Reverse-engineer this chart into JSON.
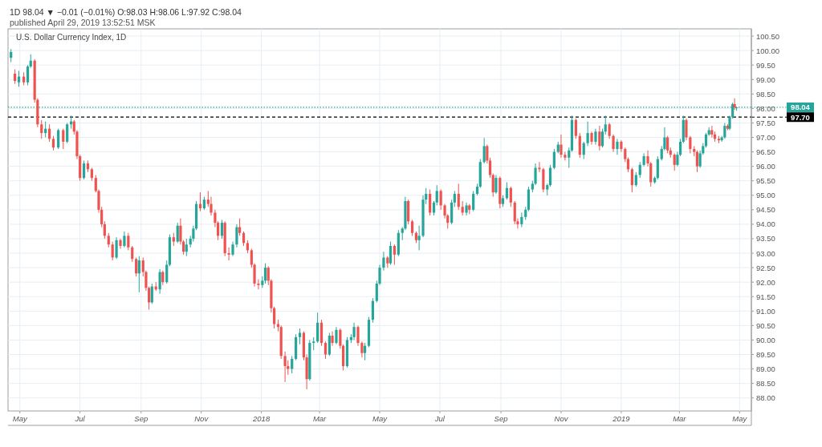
{
  "chart_data": {
    "type": "candlestick",
    "title": "U.S. Dollar Currency Index, 1D",
    "annotations": [
      "1D 98.04 ▼ −0.01 (−0.01%) O:98.03 H:98.06 L:97.92 C:98.04",
      "published April 29, 2019 13:52:51 MSK"
    ],
    "x": [
      "2017-04-22",
      "2017-04-26",
      "2017-04-30",
      "2017-05-05",
      "2017-05-09",
      "2017-05-12",
      "2017-05-16",
      "2017-05-19",
      "2017-05-23",
      "2017-05-27",
      "2017-05-31",
      "2017-06-04",
      "2017-06-09",
      "2017-06-14",
      "2017-06-18",
      "2017-06-22",
      "2017-06-25",
      "2017-06-28",
      "2017-07-01",
      "2017-07-05",
      "2017-07-09",
      "2017-07-13",
      "2017-07-17",
      "2017-07-20",
      "2017-07-23",
      "2017-07-26",
      "2017-07-30",
      "2017-08-03",
      "2017-08-07",
      "2017-08-11",
      "2017-08-15",
      "2017-08-19",
      "2017-08-23",
      "2017-08-27",
      "2017-08-30",
      "2017-09-03",
      "2017-09-06",
      "2017-09-09",
      "2017-09-12",
      "2017-09-16",
      "2017-09-20",
      "2017-09-23",
      "2017-09-27",
      "2017-09-30",
      "2017-10-04",
      "2017-10-08",
      "2017-10-11",
      "2017-10-14",
      "2017-10-17",
      "2017-10-21",
      "2017-10-24",
      "2017-10-27",
      "2017-10-31",
      "2017-11-04",
      "2017-11-08",
      "2017-11-11",
      "2017-11-15",
      "2017-11-18",
      "2017-11-22",
      "2017-11-25",
      "2017-11-29",
      "2017-12-03",
      "2017-12-07",
      "2017-12-10",
      "2017-12-14",
      "2017-12-18",
      "2017-12-22",
      "2017-12-25",
      "2017-12-29",
      "2018-01-02",
      "2018-01-05",
      "2018-01-08",
      "2018-01-11",
      "2018-01-14",
      "2018-01-18",
      "2018-01-21",
      "2018-01-25",
      "2018-01-28",
      "2018-02-01",
      "2018-02-05",
      "2018-02-09",
      "2018-02-13",
      "2018-02-16",
      "2018-02-19",
      "2018-02-23",
      "2018-02-27",
      "2018-03-03",
      "2018-03-07",
      "2018-03-11",
      "2018-03-14",
      "2018-03-18",
      "2018-03-22",
      "2018-03-25",
      "2018-03-29",
      "2018-04-02",
      "2018-04-05",
      "2018-04-09",
      "2018-04-13",
      "2018-04-16",
      "2018-04-20",
      "2018-04-24",
      "2018-04-28",
      "2018-05-01",
      "2018-05-05",
      "2018-05-09",
      "2018-05-12",
      "2018-05-16",
      "2018-05-20",
      "2018-05-24",
      "2018-05-27",
      "2018-05-30",
      "2018-06-03",
      "2018-06-07",
      "2018-06-10",
      "2018-06-14",
      "2018-06-17",
      "2018-06-21",
      "2018-06-25",
      "2018-06-28",
      "2018-07-02",
      "2018-07-06",
      "2018-07-09",
      "2018-07-13",
      "2018-07-16",
      "2018-07-20",
      "2018-07-24",
      "2018-07-28",
      "2018-07-31",
      "2018-08-04",
      "2018-08-08",
      "2018-08-11",
      "2018-08-15",
      "2018-08-18",
      "2018-08-21",
      "2018-08-24",
      "2018-08-27",
      "2018-08-31",
      "2018-09-03",
      "2018-09-07",
      "2018-09-11",
      "2018-09-15",
      "2018-09-18",
      "2018-09-22",
      "2018-09-26",
      "2018-09-29",
      "2018-10-03",
      "2018-10-06",
      "2018-10-10",
      "2018-10-14",
      "2018-10-18",
      "2018-10-21",
      "2018-10-25",
      "2018-10-29",
      "2018-11-01",
      "2018-11-05",
      "2018-11-09",
      "2018-11-12",
      "2018-11-16",
      "2018-11-20",
      "2018-11-24",
      "2018-11-28",
      "2018-12-02",
      "2018-12-06",
      "2018-12-10",
      "2018-12-13",
      "2018-12-16",
      "2018-12-20",
      "2018-12-24",
      "2018-12-28",
      "2019-01-01",
      "2019-01-05",
      "2019-01-08",
      "2019-01-12",
      "2019-01-16",
      "2019-01-20",
      "2019-01-24",
      "2019-01-28",
      "2019-01-31",
      "2019-02-04",
      "2019-02-07",
      "2019-02-11",
      "2019-02-14",
      "2019-02-17",
      "2019-02-20",
      "2019-02-24",
      "2019-02-27",
      "2019-03-02",
      "2019-03-05",
      "2019-03-08",
      "2019-03-12",
      "2019-03-16",
      "2019-03-19",
      "2019-03-22",
      "2019-03-25",
      "2019-03-28",
      "2019-03-31",
      "2019-04-03",
      "2019-04-06",
      "2019-04-10",
      "2019-04-13",
      "2019-04-16",
      "2019-04-19",
      "2019-04-21",
      "2019-04-24",
      "2019-04-26",
      "2019-04-28"
    ],
    "ohlc": [
      [
        99.75,
        100.05,
        99.6,
        99.95
      ],
      [
        99.2,
        99.35,
        98.85,
        98.95
      ],
      [
        98.9,
        99.3,
        98.75,
        99.1
      ],
      [
        99.1,
        99.25,
        98.8,
        98.9
      ],
      [
        98.9,
        99.5,
        98.8,
        99.45
      ],
      [
        99.45,
        99.87,
        99.4,
        99.65
      ],
      [
        99.65,
        99.7,
        98.2,
        98.3
      ],
      [
        98.3,
        98.35,
        97.35,
        97.45
      ],
      [
        97.45,
        97.6,
        96.95,
        97.15
      ],
      [
        97.15,
        97.55,
        97.0,
        97.3
      ],
      [
        97.3,
        97.45,
        96.85,
        96.95
      ],
      [
        96.95,
        97.05,
        96.55,
        96.65
      ],
      [
        96.65,
        97.3,
        96.6,
        97.25
      ],
      [
        97.25,
        97.3,
        96.6,
        96.85
      ],
      [
        96.85,
        97.5,
        96.8,
        97.45
      ],
      [
        97.45,
        97.75,
        97.3,
        97.55
      ],
      [
        97.55,
        97.6,
        97.1,
        97.2
      ],
      [
        97.2,
        97.25,
        96.25,
        96.35
      ],
      [
        96.35,
        96.4,
        95.5,
        95.6
      ],
      [
        95.6,
        96.2,
        95.55,
        96.1
      ],
      [
        96.1,
        96.2,
        95.8,
        95.9
      ],
      [
        95.9,
        95.95,
        95.5,
        95.6
      ],
      [
        95.6,
        95.7,
        95.1,
        95.15
      ],
      [
        95.15,
        95.2,
        94.4,
        94.5
      ],
      [
        94.5,
        94.6,
        93.9,
        94.0
      ],
      [
        94.0,
        94.1,
        93.5,
        93.6
      ],
      [
        93.6,
        93.7,
        93.2,
        93.3
      ],
      [
        93.3,
        93.4,
        92.75,
        92.85
      ],
      [
        92.85,
        93.55,
        92.8,
        93.45
      ],
      [
        93.45,
        93.5,
        93.15,
        93.25
      ],
      [
        93.25,
        93.75,
        93.2,
        93.6
      ],
      [
        93.6,
        93.7,
        93.1,
        93.2
      ],
      [
        93.2,
        93.25,
        92.7,
        92.8
      ],
      [
        92.8,
        92.85,
        92.2,
        92.3
      ],
      [
        92.3,
        92.9,
        91.65,
        92.75
      ],
      [
        92.75,
        92.85,
        92.2,
        92.35
      ],
      [
        92.35,
        92.4,
        91.7,
        91.8
      ],
      [
        91.8,
        91.85,
        91.05,
        91.3
      ],
      [
        91.3,
        91.95,
        91.25,
        91.85
      ],
      [
        91.85,
        92.0,
        91.7,
        91.75
      ],
      [
        91.75,
        92.45,
        91.6,
        92.35
      ],
      [
        92.35,
        92.4,
        91.9,
        92.0
      ],
      [
        92.0,
        92.75,
        91.95,
        92.6
      ],
      [
        92.6,
        93.65,
        92.55,
        93.55
      ],
      [
        93.55,
        93.7,
        93.25,
        93.4
      ],
      [
        93.4,
        94.05,
        93.35,
        93.95
      ],
      [
        93.95,
        94.2,
        93.3,
        93.4
      ],
      [
        93.4,
        93.45,
        92.95,
        93.05
      ],
      [
        93.05,
        93.5,
        92.9,
        93.3
      ],
      [
        93.3,
        93.6,
        93.2,
        93.5
      ],
      [
        93.5,
        93.95,
        93.4,
        93.85
      ],
      [
        93.85,
        94.8,
        93.8,
        94.7
      ],
      [
        94.7,
        95.1,
        94.45,
        94.55
      ],
      [
        94.55,
        94.95,
        94.5,
        94.85
      ],
      [
        94.85,
        95.15,
        94.6,
        94.7
      ],
      [
        94.7,
        94.95,
        94.3,
        94.4
      ],
      [
        94.4,
        94.5,
        93.9,
        94.05
      ],
      [
        94.05,
        94.1,
        93.45,
        93.6
      ],
      [
        93.6,
        94.15,
        93.5,
        94.05
      ],
      [
        94.05,
        94.1,
        92.9,
        93.0
      ],
      [
        93.0,
        93.2,
        92.75,
        92.95
      ],
      [
        92.95,
        93.4,
        92.9,
        93.3
      ],
      [
        93.3,
        94.0,
        93.2,
        93.9
      ],
      [
        93.9,
        94.2,
        93.6,
        93.7
      ],
      [
        93.7,
        93.75,
        93.25,
        93.35
      ],
      [
        93.35,
        93.45,
        93.0,
        93.1
      ],
      [
        93.1,
        93.15,
        92.5,
        92.6
      ],
      [
        92.6,
        92.65,
        91.85,
        91.95
      ],
      [
        91.95,
        92.1,
        91.75,
        91.9
      ],
      [
        91.9,
        92.2,
        91.8,
        92.05
      ],
      [
        92.05,
        92.65,
        91.95,
        92.5
      ],
      [
        92.5,
        92.55,
        91.9,
        92.05
      ],
      [
        92.05,
        92.1,
        90.95,
        91.1
      ],
      [
        91.1,
        91.15,
        90.4,
        90.55
      ],
      [
        90.55,
        90.7,
        90.3,
        90.45
      ],
      [
        90.45,
        90.5,
        89.35,
        89.45
      ],
      [
        89.45,
        89.6,
        88.55,
        89.1
      ],
      [
        89.1,
        89.3,
        88.8,
        89.0
      ],
      [
        89.0,
        89.45,
        88.85,
        89.35
      ],
      [
        89.35,
        90.2,
        89.3,
        90.1
      ],
      [
        90.1,
        90.4,
        89.85,
        90.25
      ],
      [
        90.25,
        90.3,
        89.3,
        89.4
      ],
      [
        89.4,
        89.5,
        88.3,
        88.65
      ],
      [
        88.65,
        90.0,
        88.6,
        89.9
      ],
      [
        89.9,
        90.1,
        89.65,
        89.95
      ],
      [
        89.95,
        90.95,
        89.9,
        90.6
      ],
      [
        90.6,
        90.7,
        89.8,
        89.9
      ],
      [
        89.9,
        89.95,
        89.35,
        89.5
      ],
      [
        89.5,
        90.25,
        89.45,
        90.15
      ],
      [
        90.15,
        90.3,
        89.8,
        89.9
      ],
      [
        89.9,
        90.45,
        89.85,
        90.35
      ],
      [
        90.35,
        90.4,
        89.7,
        89.8
      ],
      [
        89.8,
        89.85,
        88.95,
        89.1
      ],
      [
        89.1,
        90.1,
        89.05,
        90.0
      ],
      [
        90.0,
        90.2,
        89.9,
        90.1
      ],
      [
        90.1,
        90.6,
        90.0,
        90.45
      ],
      [
        90.45,
        90.5,
        89.8,
        89.9
      ],
      [
        89.9,
        89.95,
        89.4,
        89.55
      ],
      [
        89.55,
        89.9,
        89.3,
        89.8
      ],
      [
        89.8,
        90.8,
        89.75,
        90.7
      ],
      [
        90.7,
        91.45,
        90.6,
        91.35
      ],
      [
        91.35,
        92.05,
        91.3,
        91.95
      ],
      [
        91.95,
        92.6,
        91.9,
        92.5
      ],
      [
        92.5,
        93.05,
        92.4,
        92.85
      ],
      [
        92.85,
        92.9,
        92.5,
        92.65
      ],
      [
        92.65,
        93.4,
        92.6,
        93.25
      ],
      [
        93.25,
        93.3,
        92.6,
        92.95
      ],
      [
        92.95,
        93.8,
        92.9,
        93.7
      ],
      [
        93.7,
        93.9,
        93.45,
        93.85
      ],
      [
        93.85,
        94.95,
        93.8,
        94.8
      ],
      [
        94.8,
        94.85,
        94.0,
        94.1
      ],
      [
        94.1,
        94.15,
        93.6,
        93.7
      ],
      [
        93.7,
        93.75,
        93.35,
        93.45
      ],
      [
        93.45,
        93.95,
        93.1,
        93.6
      ],
      [
        93.6,
        95.0,
        93.55,
        94.85
      ],
      [
        94.85,
        95.25,
        94.7,
        95.05
      ],
      [
        95.05,
        95.2,
        94.3,
        94.4
      ],
      [
        94.4,
        94.8,
        94.3,
        94.75
      ],
      [
        94.75,
        95.35,
        94.65,
        95.15
      ],
      [
        95.15,
        95.2,
        94.5,
        94.65
      ],
      [
        94.65,
        94.7,
        94.2,
        94.3
      ],
      [
        94.3,
        94.35,
        93.85,
        94.05
      ],
      [
        94.05,
        94.85,
        94.0,
        94.75
      ],
      [
        94.75,
        95.15,
        94.6,
        95.05
      ],
      [
        95.05,
        95.4,
        94.5,
        94.6
      ],
      [
        94.6,
        94.8,
        94.3,
        94.4
      ],
      [
        94.4,
        94.75,
        94.3,
        94.65
      ],
      [
        94.65,
        94.7,
        94.35,
        94.5
      ],
      [
        94.5,
        95.15,
        94.45,
        95.05
      ],
      [
        95.05,
        95.4,
        95.0,
        95.3
      ],
      [
        95.3,
        96.25,
        95.25,
        96.15
      ],
      [
        96.15,
        96.98,
        96.1,
        96.7
      ],
      [
        96.7,
        96.75,
        96.1,
        96.2
      ],
      [
        96.2,
        96.3,
        95.6,
        95.7
      ],
      [
        95.7,
        95.75,
        94.95,
        95.1
      ],
      [
        95.1,
        95.7,
        95.05,
        95.6
      ],
      [
        95.6,
        95.65,
        94.55,
        94.7
      ],
      [
        94.7,
        95.0,
        94.6,
        94.9
      ],
      [
        94.9,
        95.45,
        94.85,
        95.25
      ],
      [
        95.25,
        95.3,
        94.6,
        94.75
      ],
      [
        94.75,
        94.8,
        94.0,
        94.1
      ],
      [
        94.1,
        94.2,
        93.85,
        94.0
      ],
      [
        94.0,
        94.4,
        93.9,
        94.25
      ],
      [
        94.25,
        94.6,
        94.15,
        94.5
      ],
      [
        94.5,
        95.3,
        94.45,
        95.2
      ],
      [
        95.2,
        95.5,
        95.1,
        95.4
      ],
      [
        95.4,
        96.1,
        95.35,
        95.95
      ],
      [
        95.95,
        96.15,
        95.8,
        95.9
      ],
      [
        95.9,
        95.95,
        95.1,
        95.2
      ],
      [
        95.2,
        95.4,
        95.0,
        95.35
      ],
      [
        95.35,
        96.05,
        95.3,
        95.95
      ],
      [
        95.95,
        96.6,
        95.9,
        96.5
      ],
      [
        96.5,
        96.85,
        96.45,
        96.75
      ],
      [
        96.75,
        97.1,
        96.3,
        96.4
      ],
      [
        96.4,
        96.5,
        96.2,
        96.3
      ],
      [
        96.3,
        96.65,
        95.95,
        96.55
      ],
      [
        96.55,
        97.75,
        96.5,
        97.6
      ],
      [
        97.6,
        97.65,
        96.95,
        97.05
      ],
      [
        97.05,
        97.15,
        96.3,
        96.4
      ],
      [
        96.4,
        96.85,
        96.25,
        96.8
      ],
      [
        96.8,
        97.55,
        96.7,
        97.15
      ],
      [
        97.15,
        97.2,
        96.75,
        96.85
      ],
      [
        96.85,
        97.3,
        96.75,
        97.2
      ],
      [
        97.2,
        97.4,
        96.55,
        96.7
      ],
      [
        96.7,
        97.3,
        96.65,
        97.2
      ],
      [
        97.2,
        97.75,
        97.1,
        97.45
      ],
      [
        97.45,
        97.5,
        96.95,
        97.05
      ],
      [
        97.05,
        97.1,
        96.5,
        96.6
      ],
      [
        96.6,
        96.95,
        96.4,
        96.85
      ],
      [
        96.85,
        96.9,
        96.5,
        96.6
      ],
      [
        96.6,
        96.65,
        96.15,
        96.25
      ],
      [
        96.25,
        96.3,
        95.8,
        95.9
      ],
      [
        95.9,
        95.95,
        95.1,
        95.35
      ],
      [
        95.35,
        95.8,
        95.3,
        95.7
      ],
      [
        95.7,
        96.15,
        95.6,
        96.05
      ],
      [
        96.05,
        96.45,
        96.0,
        96.35
      ],
      [
        96.35,
        96.55,
        96.0,
        96.1
      ],
      [
        96.1,
        96.15,
        95.3,
        95.45
      ],
      [
        95.45,
        95.65,
        95.4,
        95.6
      ],
      [
        95.6,
        96.35,
        95.55,
        96.25
      ],
      [
        96.25,
        96.7,
        96.2,
        96.6
      ],
      [
        96.6,
        97.35,
        96.55,
        97.0
      ],
      [
        97.0,
        97.05,
        96.45,
        96.55
      ],
      [
        96.55,
        96.65,
        96.3,
        96.4
      ],
      [
        96.4,
        96.45,
        95.85,
        96.05
      ],
      [
        96.05,
        96.5,
        96.0,
        96.4
      ],
      [
        96.4,
        96.95,
        96.35,
        96.85
      ],
      [
        96.85,
        97.75,
        96.8,
        97.6
      ],
      [
        97.6,
        97.65,
        96.9,
        97.0
      ],
      [
        97.0,
        97.05,
        96.45,
        96.6
      ],
      [
        96.6,
        96.7,
        96.35,
        96.5
      ],
      [
        96.5,
        96.55,
        95.8,
        96.0
      ],
      [
        96.0,
        96.55,
        95.95,
        96.45
      ],
      [
        96.45,
        96.8,
        96.4,
        96.7
      ],
      [
        96.7,
        97.15,
        96.65,
        97.1
      ],
      [
        97.1,
        97.35,
        97.05,
        97.25
      ],
      [
        97.25,
        97.4,
        97.0,
        97.1
      ],
      [
        97.1,
        97.2,
        96.85,
        96.95
      ],
      [
        96.95,
        97.05,
        96.8,
        96.9
      ],
      [
        96.9,
        97.05,
        96.85,
        97.0
      ],
      [
        97.0,
        97.5,
        96.95,
        97.4
      ],
      [
        97.4,
        97.45,
        97.25,
        97.3
      ],
      [
        97.3,
        97.75,
        97.25,
        97.7
      ],
      [
        97.7,
        98.2,
        97.65,
        98.15
      ],
      [
        98.15,
        98.35,
        97.95,
        98.03
      ],
      [
        98.03,
        98.06,
        97.92,
        98.04
      ]
    ],
    "xlim": [
      "2017-04-19",
      "2019-05-13"
    ],
    "xticks": [
      {
        "value": "2017-05-01",
        "label": "May"
      },
      {
        "value": "2017-07-01",
        "label": "Jul"
      },
      {
        "value": "2017-09-01",
        "label": "Sep"
      },
      {
        "value": "2017-11-01",
        "label": "Nov"
      },
      {
        "value": "2018-01-01",
        "label": "2018"
      },
      {
        "value": "2018-03-01",
        "label": "Mar"
      },
      {
        "value": "2018-05-01",
        "label": "May"
      },
      {
        "value": "2018-07-01",
        "label": "Jul"
      },
      {
        "value": "2018-09-01",
        "label": "Sep"
      },
      {
        "value": "2018-11-01",
        "label": "Nov"
      },
      {
        "value": "2019-01-01",
        "label": "2019"
      },
      {
        "value": "2019-03-01",
        "label": "Mar"
      },
      {
        "value": "2019-05-01",
        "label": "May"
      }
    ],
    "ylim": [
      87.55,
      100.75
    ],
    "yticks": [
      {
        "value": 88,
        "label": "88.00"
      },
      {
        "value": 88.5,
        "label": "88.50"
      },
      {
        "value": 89,
        "label": "89.00"
      },
      {
        "value": 89.5,
        "label": "89.50"
      },
      {
        "value": 90,
        "label": "90.00"
      },
      {
        "value": 90.5,
        "label": "90.50"
      },
      {
        "value": 91,
        "label": "91.00"
      },
      {
        "value": 91.5,
        "label": "91.50"
      },
      {
        "value": 92,
        "label": "92.00"
      },
      {
        "value": 92.5,
        "label": "92.50"
      },
      {
        "value": 93,
        "label": "93.00"
      },
      {
        "value": 93.5,
        "label": "93.50"
      },
      {
        "value": 94,
        "label": "94.00"
      },
      {
        "value": 94.5,
        "label": "94.50"
      },
      {
        "value": 95,
        "label": "95.00"
      },
      {
        "value": 95.5,
        "label": "95.50"
      },
      {
        "value": 96,
        "label": "96.00"
      },
      {
        "value": 96.5,
        "label": "96.50"
      },
      {
        "value": 97,
        "label": "97.00"
      },
      {
        "value": 97.5,
        "label": "97.50"
      },
      {
        "value": 98,
        "label": "98.00"
      },
      {
        "value": 98.5,
        "label": "98.50"
      },
      {
        "value": 99,
        "label": "99.00"
      },
      {
        "value": 99.5,
        "label": "99.50"
      },
      {
        "value": 100,
        "label": "100.00"
      },
      {
        "value": 100.5,
        "label": "100.50"
      }
    ],
    "grid": true,
    "ref_lines": [
      {
        "axis": "y",
        "value": 98.04,
        "label": "98.04",
        "color": "#26a69a",
        "line_style": "dotted"
      },
      {
        "axis": "y",
        "value": 97.7,
        "label": "97.70",
        "color": "#000000",
        "line_style": "dashed"
      }
    ]
  }
}
